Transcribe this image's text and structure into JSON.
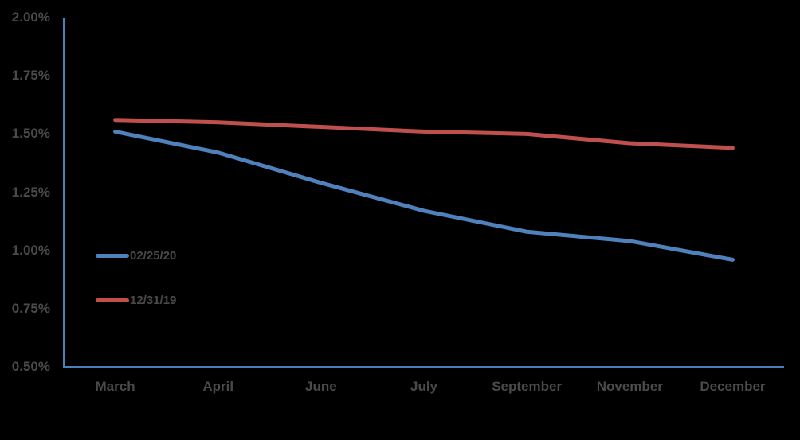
{
  "background_color": "#000000",
  "text_color": "#4a4a4a",
  "chart_data": {
    "type": "line",
    "title": "",
    "xlabel": "",
    "ylabel": "",
    "grid": false,
    "axis_color": "#4e7dbe",
    "categories": [
      "March",
      "April",
      "June",
      "July",
      "September",
      "November",
      "December"
    ],
    "series": [
      {
        "name": "02/25/20",
        "color": "#4f81bd",
        "values": [
          1.51,
          1.42,
          1.29,
          1.17,
          1.08,
          1.04,
          0.96
        ]
      },
      {
        "name": "12/31/19",
        "color": "#c0504d",
        "values": [
          1.56,
          1.55,
          1.53,
          1.51,
          1.5,
          1.46,
          1.44
        ]
      }
    ],
    "y_axis": {
      "min": 0.5,
      "max": 2.0,
      "tick_values": [
        2.0,
        1.75,
        1.5,
        1.25,
        1.0,
        0.75,
        0.5
      ],
      "tick_labels": [
        "2.00%",
        "1.75%",
        "1.50%",
        "1.25%",
        "1.00%",
        "0.75%",
        "0.50%"
      ]
    },
    "x_axis": {
      "tick_labels": [
        "March",
        "April",
        "June",
        "July",
        "September",
        "November",
        "December"
      ]
    },
    "legend": {
      "position": "inside-left",
      "entries": [
        "02/25/20",
        "12/31/19"
      ]
    }
  }
}
